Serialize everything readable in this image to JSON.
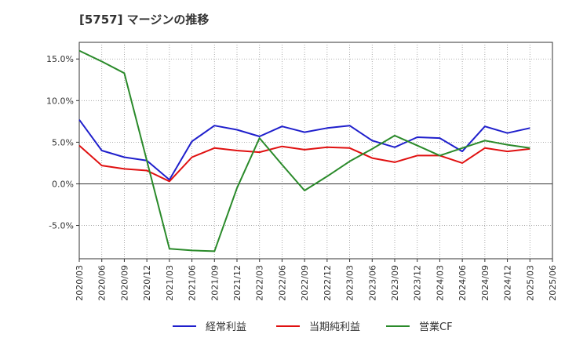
{
  "chart_data": {
    "type": "line",
    "title": "[5757]  マージンの推移",
    "x": [
      "2020/03",
      "2020/06",
      "2020/09",
      "2020/12",
      "2021/03",
      "2021/06",
      "2021/09",
      "2021/12",
      "2022/03",
      "2022/06",
      "2022/09",
      "2022/12",
      "2023/03",
      "2023/06",
      "2023/09",
      "2023/12",
      "2024/03",
      "2024/06",
      "2024/09",
      "2024/12",
      "2025/03",
      "2025/06"
    ],
    "ylim": [
      -9.0,
      17.0
    ],
    "yticks": [
      -5.0,
      0.0,
      5.0,
      10.0,
      15.0
    ],
    "ytick_labels": [
      "-5.0%",
      "0.0%",
      "5.0%",
      "10.0%",
      "15.0%"
    ],
    "grid": true,
    "legend_position": "bottom",
    "series": [
      {
        "name": "経常利益",
        "color": "#1f1fcc",
        "values": [
          7.7,
          4.0,
          3.2,
          2.8,
          0.5,
          5.1,
          7.0,
          6.5,
          5.7,
          6.9,
          6.2,
          6.7,
          7.0,
          5.2,
          4.4,
          5.6,
          5.5,
          3.9,
          6.9,
          6.1,
          6.7,
          null
        ]
      },
      {
        "name": "当期純利益",
        "color": "#e01010",
        "values": [
          4.6,
          2.2,
          1.8,
          1.6,
          0.3,
          3.2,
          4.3,
          4.0,
          3.8,
          4.5,
          4.1,
          4.4,
          4.3,
          3.1,
          2.6,
          3.4,
          3.4,
          2.5,
          4.3,
          3.9,
          4.2,
          null
        ]
      },
      {
        "name": "営業CF",
        "color": "#2a8a2a",
        "values": [
          16.0,
          14.7,
          13.3,
          2.8,
          -7.8,
          -8.0,
          -8.1,
          -0.5,
          5.5,
          2.3,
          -0.8,
          0.9,
          2.7,
          4.2,
          5.8,
          4.6,
          3.4,
          4.3,
          5.2,
          4.7,
          4.3,
          null
        ]
      }
    ]
  }
}
